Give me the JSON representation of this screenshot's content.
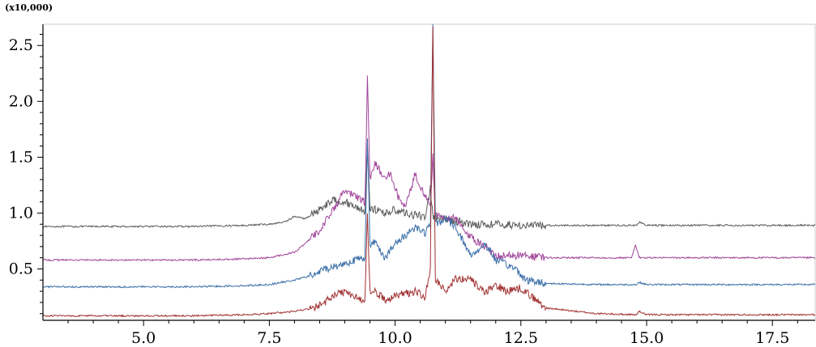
{
  "chart_data": {
    "type": "line",
    "title": "",
    "xlabel": "",
    "ylabel": "",
    "y_scale_label": "(x10,000)",
    "xlim": [
      3.0,
      18.35
    ],
    "ylim": [
      0.04,
      2.69
    ],
    "x_tick_labels": [
      "5.0",
      "7.5",
      "10.0",
      "12.5",
      "15.0",
      "17.5"
    ],
    "x_ticks": [
      5.0,
      7.5,
      10.0,
      12.5,
      15.0,
      17.5
    ],
    "y_tick_labels": [
      "0.5",
      "1.0",
      "1.5",
      "2.0",
      "2.5"
    ],
    "y_ticks": [
      0.5,
      1.0,
      1.5,
      2.0,
      2.5
    ],
    "grid": false,
    "legend": "none",
    "colors": {
      "series_1": "#5a5a5a",
      "series_2": "#a0449a",
      "series_3": "#3a6ea8",
      "series_4": "#a03030",
      "axis": "#000000",
      "frame": "#cccccc"
    },
    "series": [
      {
        "color": "#5a5a5a",
        "x": [
          3.0,
          4.0,
          5.0,
          6.0,
          7.0,
          7.5,
          7.8,
          8.0,
          8.2,
          8.4,
          8.6,
          8.8,
          9.0,
          9.2,
          9.4,
          9.45,
          9.5,
          9.6,
          9.8,
          10.0,
          10.2,
          10.4,
          10.6,
          10.7,
          10.75,
          10.8,
          11.0,
          11.2,
          11.5,
          12.0,
          12.5,
          13.0,
          14.0,
          14.8,
          14.85,
          15.0,
          16.0,
          17.0,
          18.35
        ],
        "y": [
          0.88,
          0.88,
          0.88,
          0.88,
          0.89,
          0.9,
          0.92,
          0.97,
          0.95,
          1.0,
          1.07,
          1.12,
          1.1,
          1.06,
          1.02,
          1.6,
          1.05,
          1.03,
          1.0,
          1.03,
          1.0,
          0.98,
          0.97,
          1.22,
          0.97,
          0.95,
          0.94,
          0.93,
          0.9,
          0.9,
          0.89,
          0.89,
          0.89,
          0.89,
          0.92,
          0.89,
          0.89,
          0.89,
          0.89
        ]
      },
      {
        "color": "#a0449a",
        "x": [
          3.0,
          4.0,
          5.0,
          6.0,
          7.0,
          7.5,
          8.0,
          8.2,
          8.5,
          8.8,
          9.0,
          9.2,
          9.4,
          9.45,
          9.5,
          9.6,
          9.8,
          9.9,
          10.1,
          10.2,
          10.4,
          10.5,
          10.7,
          10.75,
          10.8,
          11.0,
          11.2,
          11.5,
          11.8,
          12.0,
          12.5,
          13.0,
          14.0,
          14.7,
          14.78,
          14.85,
          15.0,
          16.0,
          17.0,
          18.35
        ],
        "y": [
          0.58,
          0.58,
          0.58,
          0.58,
          0.59,
          0.6,
          0.65,
          0.72,
          0.85,
          1.05,
          1.2,
          1.15,
          1.1,
          2.2,
          1.3,
          1.45,
          1.3,
          1.35,
          1.1,
          1.05,
          1.35,
          1.25,
          1.05,
          1.5,
          1.0,
          0.95,
          0.95,
          0.78,
          0.7,
          0.62,
          0.62,
          0.6,
          0.6,
          0.6,
          0.72,
          0.6,
          0.6,
          0.6,
          0.6,
          0.6
        ]
      },
      {
        "color": "#3a6ea8",
        "x": [
          3.0,
          4.0,
          5.0,
          6.0,
          7.0,
          7.5,
          8.0,
          8.4,
          8.6,
          8.8,
          9.0,
          9.2,
          9.4,
          9.45,
          9.5,
          9.6,
          9.8,
          10.0,
          10.2,
          10.4,
          10.6,
          10.7,
          10.75,
          10.8,
          11.0,
          11.2,
          11.5,
          11.8,
          12.0,
          12.4,
          12.6,
          13.0,
          14.0,
          14.8,
          14.85,
          15.0,
          16.0,
          17.0,
          18.35
        ],
        "y": [
          0.34,
          0.34,
          0.34,
          0.34,
          0.35,
          0.36,
          0.4,
          0.45,
          0.5,
          0.52,
          0.55,
          0.58,
          0.6,
          1.7,
          0.7,
          0.75,
          0.6,
          0.72,
          0.8,
          0.88,
          0.82,
          0.9,
          2.69,
          0.9,
          0.95,
          0.88,
          0.62,
          0.72,
          0.58,
          0.5,
          0.4,
          0.37,
          0.36,
          0.36,
          0.38,
          0.36,
          0.36,
          0.36,
          0.36
        ]
      },
      {
        "color": "#a03030",
        "x": [
          3.0,
          4.0,
          5.0,
          6.0,
          7.0,
          7.5,
          8.0,
          8.4,
          8.6,
          8.8,
          9.0,
          9.2,
          9.4,
          9.45,
          9.5,
          9.6,
          9.8,
          10.0,
          10.2,
          10.4,
          10.6,
          10.7,
          10.75,
          10.8,
          11.0,
          11.2,
          11.5,
          11.8,
          12.0,
          12.2,
          12.5,
          13.0,
          14.0,
          14.8,
          14.85,
          15.0,
          16.0,
          17.0,
          18.35
        ],
        "y": [
          0.08,
          0.08,
          0.08,
          0.08,
          0.09,
          0.1,
          0.12,
          0.15,
          0.2,
          0.27,
          0.3,
          0.25,
          0.2,
          1.0,
          0.3,
          0.3,
          0.22,
          0.26,
          0.28,
          0.3,
          0.25,
          0.5,
          2.69,
          0.4,
          0.3,
          0.42,
          0.4,
          0.28,
          0.36,
          0.3,
          0.33,
          0.15,
          0.1,
          0.09,
          0.12,
          0.09,
          0.09,
          0.09,
          0.09
        ]
      }
    ]
  }
}
